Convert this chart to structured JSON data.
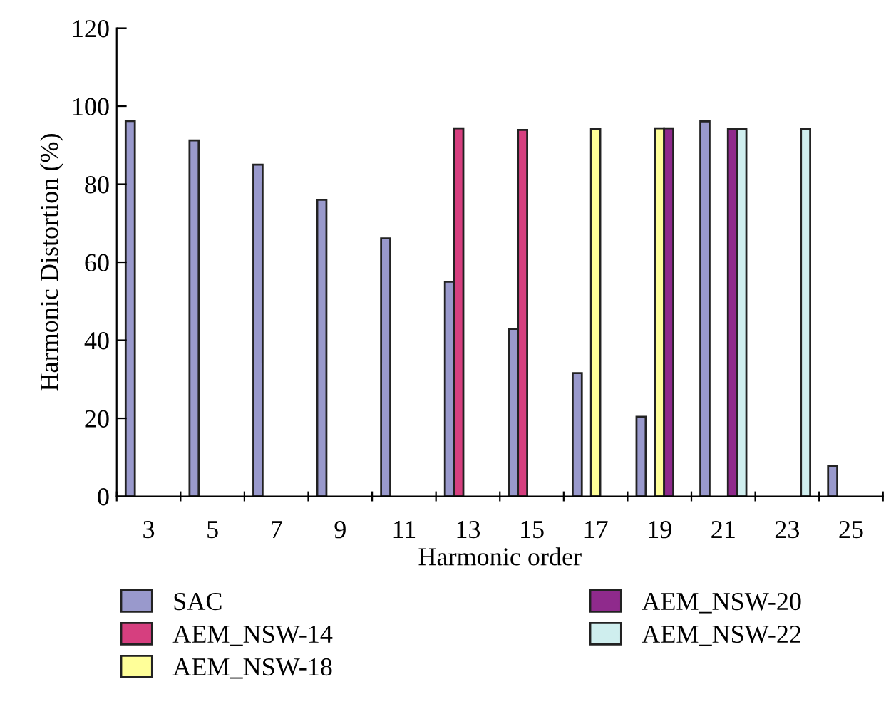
{
  "chart_data": {
    "type": "bar",
    "xlabel": "Harmonic order",
    "ylabel": "Harmonic Distortion (%)",
    "categories": [
      "3",
      "5",
      "7",
      "9",
      "11",
      "13",
      "15",
      "17",
      "19",
      "21",
      "23",
      "25"
    ],
    "series": [
      {
        "name": "SAC",
        "color": "#9999cc",
        "values": [
          96.2,
          91.2,
          85.0,
          76.0,
          66.1,
          55.0,
          42.9,
          31.6,
          20.4,
          96.1,
          null,
          7.7
        ]
      },
      {
        "name": "AEM_NSW-14",
        "color": "#d63f7f",
        "values": [
          null,
          null,
          null,
          null,
          null,
          94.3,
          93.9,
          null,
          null,
          null,
          null,
          null
        ]
      },
      {
        "name": "AEM_NSW-18",
        "color": "#ffff99",
        "values": [
          null,
          null,
          null,
          null,
          null,
          null,
          null,
          94.1,
          94.3,
          null,
          null,
          null
        ]
      },
      {
        "name": "AEM_NSW-20",
        "color": "#8f2a8c",
        "values": [
          null,
          null,
          null,
          null,
          null,
          null,
          null,
          null,
          94.3,
          94.2,
          null,
          null
        ]
      },
      {
        "name": "AEM_NSW-22",
        "color": "#cfeeee",
        "values": [
          null,
          null,
          null,
          null,
          null,
          null,
          null,
          null,
          null,
          94.2,
          94.2,
          null
        ]
      }
    ],
    "ylim": [
      0,
      120
    ],
    "yticks": [
      0,
      20,
      40,
      60,
      80,
      100,
      120
    ],
    "grid": false,
    "legend": "bottom"
  }
}
